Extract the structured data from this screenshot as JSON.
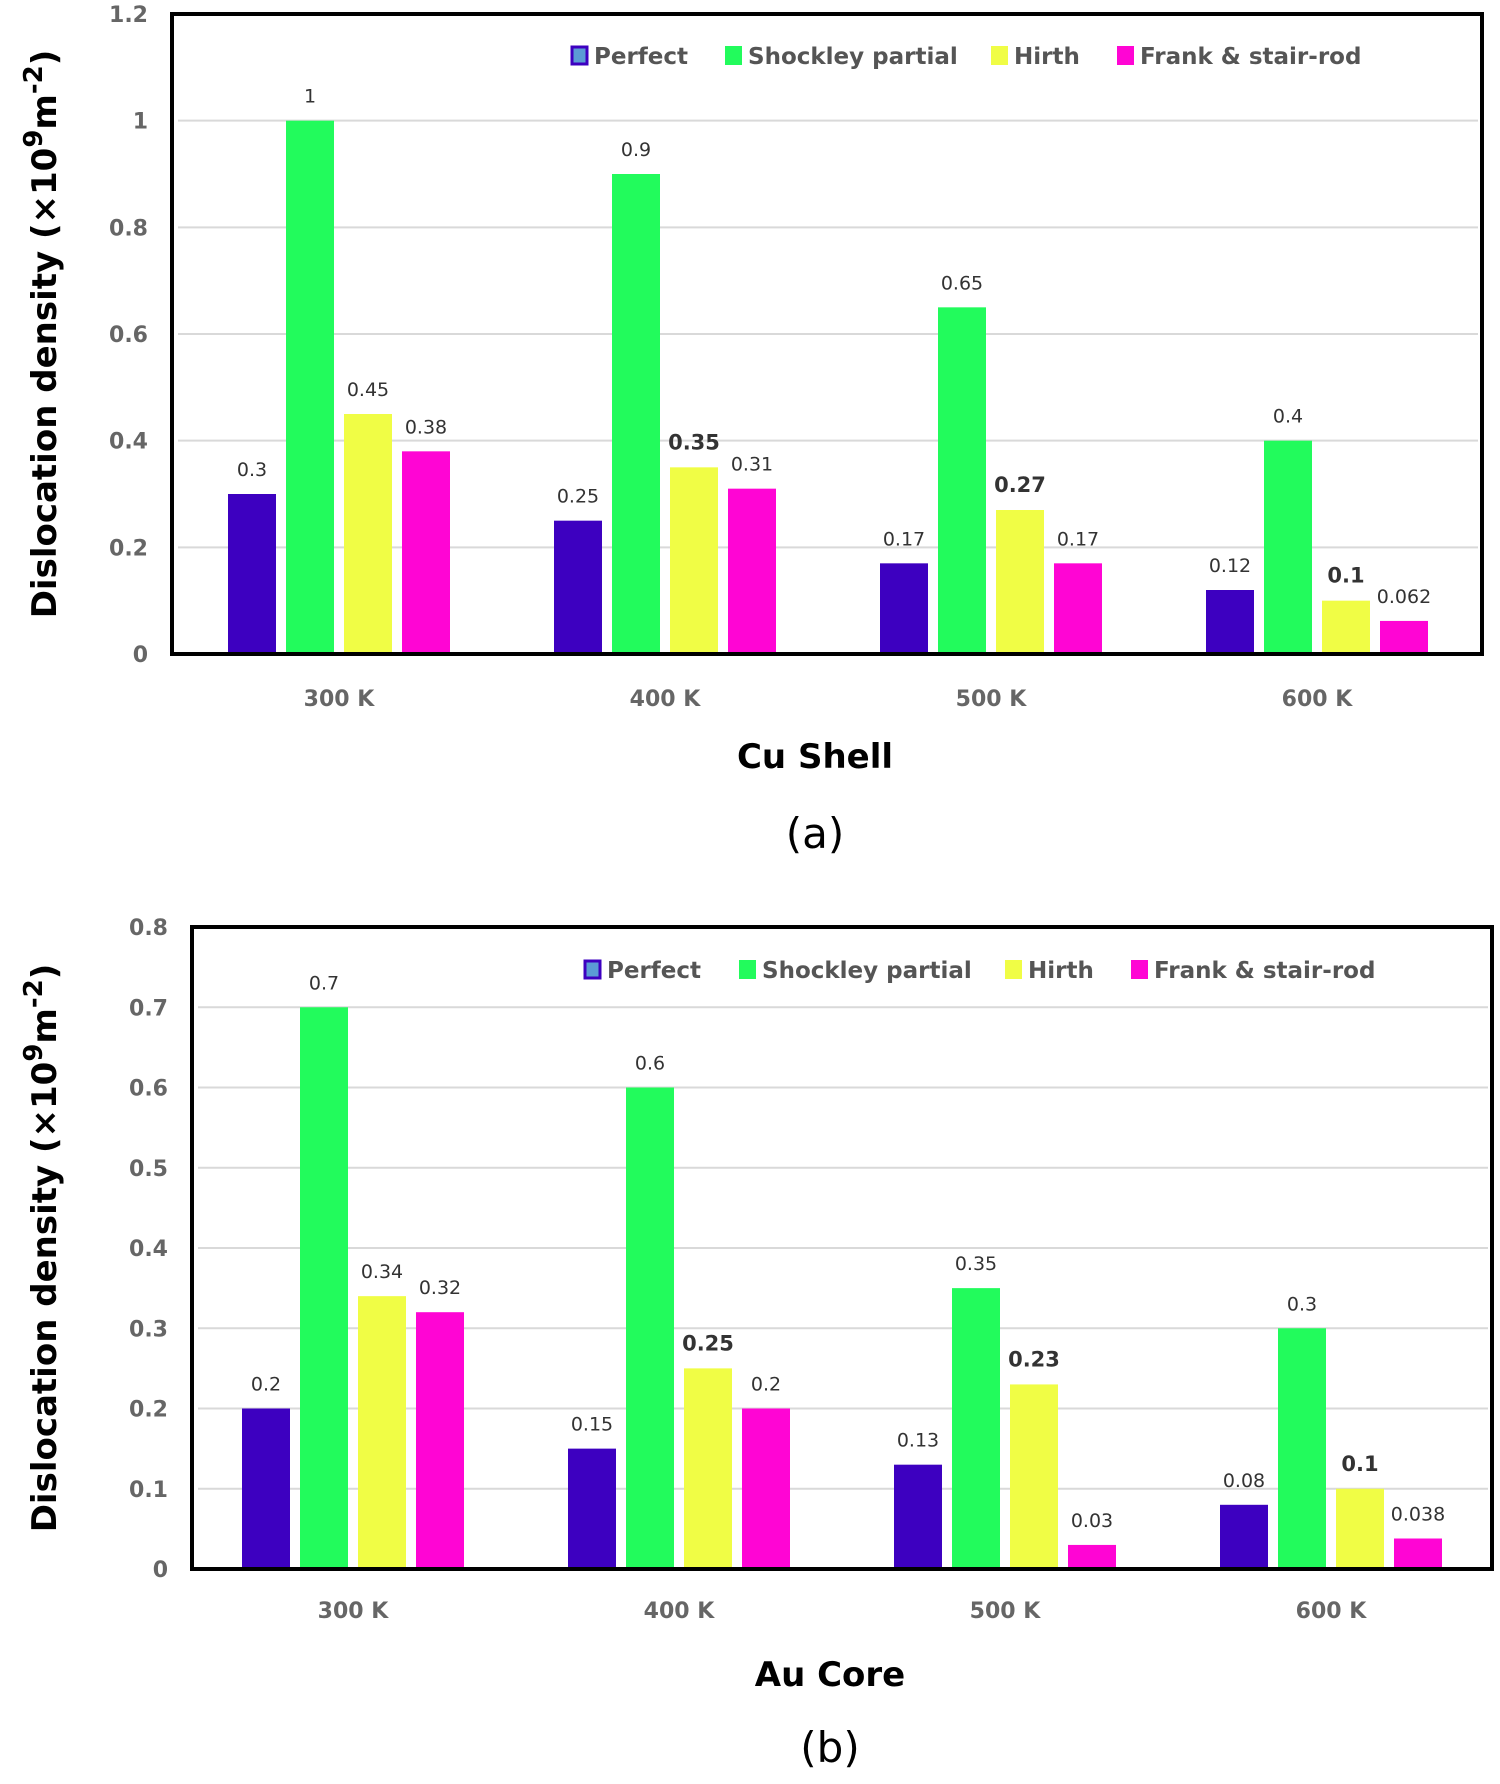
{
  "chart_data": [
    {
      "type": "bar",
      "panel_label": "(a)",
      "title": "",
      "xlabel": "Cu Shell",
      "ylabel": "Dislocation density (×10",
      "ylabel_sup1": "9",
      "ylabel_mid": "m",
      "ylabel_sup2": "-2",
      "ylabel_end": ")",
      "ylim": [
        0,
        1.2
      ],
      "yticks": [
        0,
        0.2,
        0.4,
        0.6,
        0.8,
        1,
        1.2
      ],
      "ytick_labels": [
        "0",
        "0.2",
        "0.4",
        "0.6",
        "0.8",
        "1",
        "1.2"
      ],
      "grid": true,
      "legend_position": "top-right",
      "categories": [
        "300 K",
        "400 K",
        "500 K",
        "600 K"
      ],
      "series": [
        {
          "name": "Perfect",
          "color": "#3d00c0",
          "values": [
            0.3,
            0.25,
            0.17,
            0.12
          ],
          "labels": [
            "0.3",
            "0.25",
            "0.17",
            "0.12"
          ]
        },
        {
          "name": "Shockley partial",
          "color": "#22fb5c",
          "values": [
            1,
            0.9,
            0.65,
            0.4
          ],
          "labels": [
            "1",
            "0.9",
            "0.65",
            "0.4"
          ]
        },
        {
          "name": "Hirth",
          "color": "#f0fd45",
          "values": [
            0.45,
            0.35,
            0.27,
            0.1
          ],
          "labels": [
            "0.45",
            "0.35",
            "0.27",
            "0.1"
          ]
        },
        {
          "name": "Frank & stair-rod",
          "color": "#ff05d4",
          "values": [
            0.38,
            0.31,
            0.17,
            0.062
          ],
          "labels": [
            "0.38",
            "0.31",
            "0.17",
            "0.062"
          ]
        }
      ]
    },
    {
      "type": "bar",
      "panel_label": "(b)",
      "title": "",
      "xlabel": "Au Core",
      "ylabel": "Dislocation density (×10",
      "ylabel_sup1": "9",
      "ylabel_mid": "m",
      "ylabel_sup2": "-2",
      "ylabel_end": ")",
      "ylim": [
        0,
        0.8
      ],
      "yticks": [
        0,
        0.1,
        0.2,
        0.3,
        0.4,
        0.5,
        0.6,
        0.7,
        0.8
      ],
      "ytick_labels": [
        "0",
        "0.1",
        "0.2",
        "0.3",
        "0.4",
        "0.5",
        "0.6",
        "0.7",
        "0.8"
      ],
      "grid": true,
      "legend_position": "top-right",
      "categories": [
        "300 K",
        "400 K",
        "500 K",
        "600 K"
      ],
      "series": [
        {
          "name": "Perfect",
          "color": "#3d00c0",
          "values": [
            0.2,
            0.15,
            0.13,
            0.08
          ],
          "labels": [
            "0.2",
            "0.15",
            "0.13",
            "0.08"
          ]
        },
        {
          "name": "Shockley partial",
          "color": "#22fb5c",
          "values": [
            0.7,
            0.6,
            0.35,
            0.3
          ],
          "labels": [
            "0.7",
            "0.6",
            "0.35",
            "0.3"
          ]
        },
        {
          "name": "Hirth",
          "color": "#f0fd45",
          "values": [
            0.34,
            0.25,
            0.23,
            0.1
          ],
          "labels": [
            "0.34",
            "0.25",
            "0.23",
            "0.1"
          ]
        },
        {
          "name": "Frank & stair-rod",
          "color": "#ff05d4",
          "values": [
            0.32,
            0.2,
            0.03,
            0.038
          ],
          "labels": [
            "0.32",
            "0.2",
            "0.03",
            "0.038"
          ]
        }
      ]
    }
  ],
  "legend_perfect_swatch_fill": "#5b9bd5"
}
